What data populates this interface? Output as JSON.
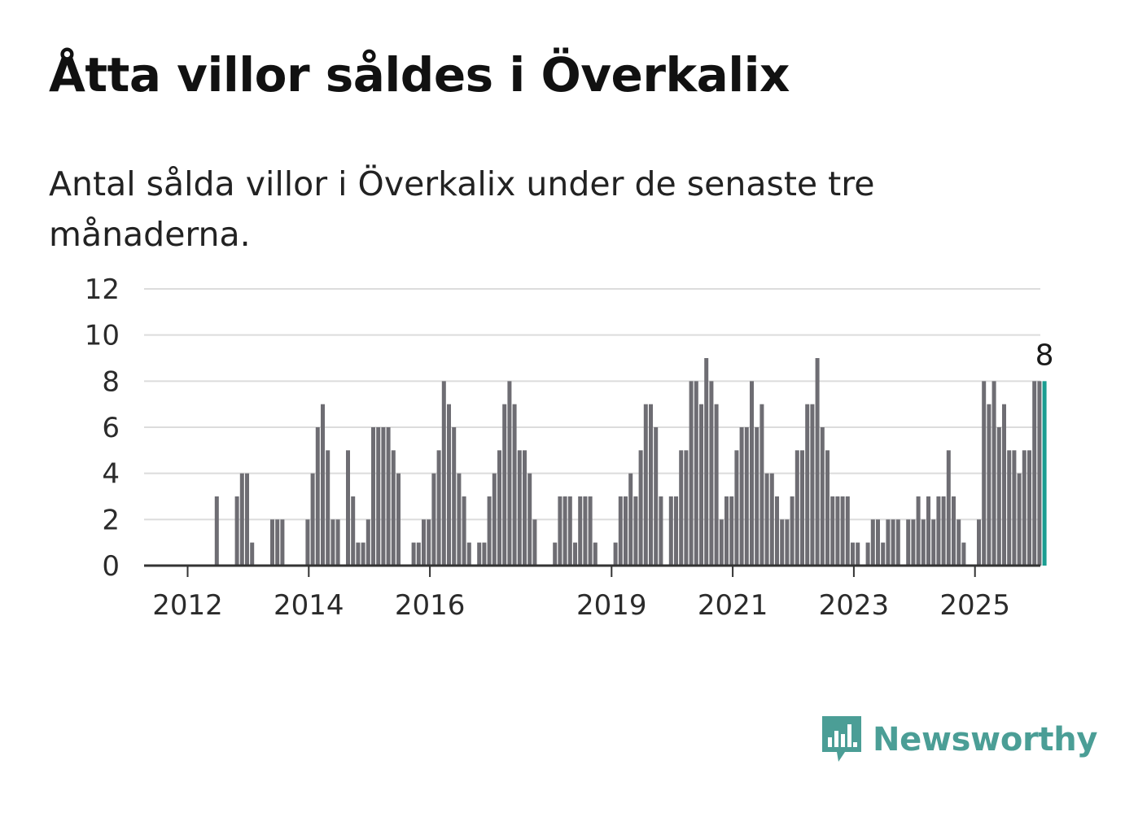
{
  "title": "Åtta villor såldes i Överkalix",
  "subtitle": "Antal sålda villor i Överkalix under de senaste tre månaderna.",
  "brand": {
    "name": "Newsworthy",
    "color": "#4b9e96",
    "icon": "newsworthy-chart-icon"
  },
  "colors": {
    "bar": "#6e6d73",
    "highlight": "#1b9e92",
    "grid": "#dcdcdc",
    "axis": "#333333"
  },
  "chart_data": {
    "type": "bar",
    "ylim": [
      0,
      12
    ],
    "yticks": [
      0,
      2,
      4,
      6,
      8,
      10,
      12
    ],
    "xticks": [
      "2012",
      "2014",
      "2016",
      "2019",
      "2021",
      "2023",
      "2025"
    ],
    "grid": true,
    "highlight_label": "8",
    "values": [
      0,
      0,
      0,
      0,
      0,
      0,
      0,
      0,
      0,
      3,
      0,
      0,
      0,
      3,
      4,
      4,
      1,
      0,
      0,
      0,
      2,
      2,
      2,
      0,
      0,
      0,
      0,
      2,
      4,
      6,
      7,
      5,
      2,
      2,
      0,
      5,
      3,
      1,
      1,
      2,
      6,
      6,
      6,
      6,
      5,
      4,
      0,
      0,
      1,
      1,
      2,
      2,
      4,
      5,
      8,
      7,
      6,
      4,
      3,
      1,
      0,
      1,
      1,
      3,
      4,
      5,
      7,
      8,
      7,
      5,
      5,
      4,
      2,
      0,
      0,
      0,
      1,
      3,
      3,
      3,
      1,
      3,
      3,
      3,
      1,
      0,
      0,
      0,
      1,
      3,
      3,
      4,
      3,
      5,
      7,
      7,
      6,
      3,
      0,
      3,
      3,
      5,
      5,
      8,
      8,
      7,
      9,
      8,
      7,
      2,
      3,
      3,
      5,
      6,
      6,
      8,
      6,
      7,
      4,
      4,
      3,
      2,
      2,
      3,
      5,
      5,
      7,
      7,
      9,
      6,
      5,
      3,
      3,
      3,
      3,
      1,
      1,
      0,
      1,
      2,
      2,
      1,
      2,
      2,
      2,
      0,
      2,
      2,
      3,
      2,
      3,
      2,
      3,
      3,
      5,
      3,
      2,
      1,
      0,
      0,
      2,
      8,
      7,
      8,
      6,
      7,
      5,
      5,
      4,
      5,
      5,
      8,
      8,
      8
    ]
  }
}
